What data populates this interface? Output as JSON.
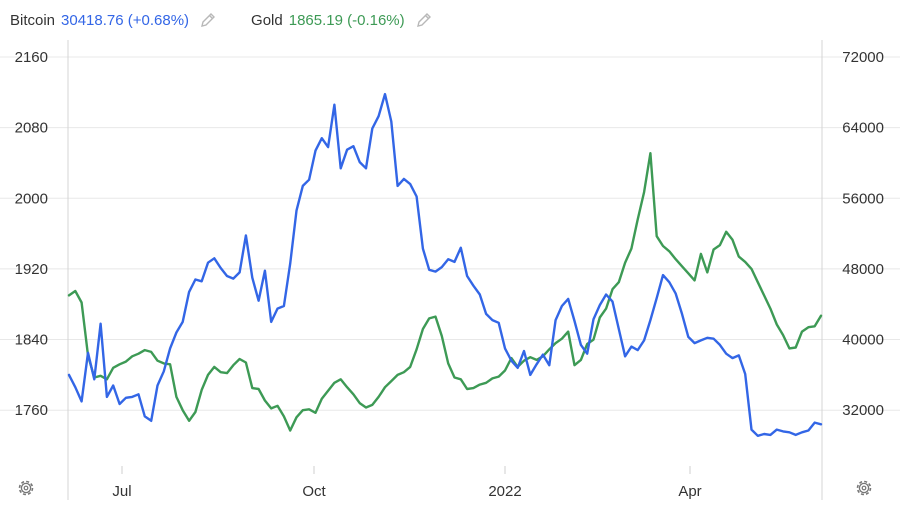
{
  "legend": {
    "btc_name": "Bitcoin",
    "btc_value": "30418.76 (+0.68%)",
    "gold_name": "Gold",
    "gold_value": "1865.19 (-0.16%)",
    "btc_color": "#3366e6",
    "gold_color": "#3d9a55"
  },
  "icons": {
    "edit": "pencil-icon",
    "settings": "gear-icon"
  },
  "chart_data": {
    "type": "line",
    "grid": "horizontal",
    "x_labels": [
      "Jul",
      "Oct",
      "2022",
      "Apr"
    ],
    "left_axis": {
      "ticks": [
        "2160",
        "2080",
        "2000",
        "1920",
        "1840",
        "1760"
      ],
      "range": [
        1690,
        2160
      ]
    },
    "right_axis": {
      "ticks": [
        "72000",
        "64000",
        "56000",
        "48000",
        "40000",
        "32000"
      ],
      "range": [
        25000,
        72000
      ]
    },
    "series": [
      {
        "name": "Bitcoin",
        "axis": "right",
        "color": "#3366e6",
        "values": [
          36000,
          34600,
          33000,
          38500,
          35500,
          41800,
          33500,
          34800,
          32700,
          33400,
          33500,
          33800,
          31300,
          30800,
          34800,
          36400,
          39000,
          40800,
          42000,
          45400,
          46800,
          46600,
          48700,
          49200,
          48100,
          47200,
          46900,
          47600,
          51800,
          47000,
          44400,
          47800,
          42000,
          43500,
          43800,
          48600,
          54600,
          57400,
          58100,
          61400,
          62800,
          61800,
          66600,
          59400,
          61500,
          61900,
          60100,
          59400,
          63900,
          65300,
          67800,
          64700,
          57400,
          58200,
          57600,
          56200,
          50300,
          47900,
          47700,
          48200,
          49100,
          48800,
          50400,
          47200,
          46100,
          45100,
          42900,
          42200,
          41900,
          39000,
          37600,
          36800,
          38700,
          36000,
          37200,
          38300,
          37100,
          42200,
          43800,
          44600,
          42100,
          39400,
          38400,
          42300,
          43900,
          45100,
          44300,
          41200,
          38100,
          39200,
          38800,
          39900,
          42200,
          44700,
          47300,
          46500,
          45200,
          42900,
          40300,
          39600,
          39900,
          40200,
          40100,
          39400,
          38400,
          37900,
          38200,
          36100,
          29800,
          29100,
          29300,
          29200,
          29800,
          29600,
          29500,
          29200,
          29500,
          29700,
          30600,
          30400
        ]
      },
      {
        "name": "Gold",
        "axis": "left",
        "color": "#3d9a55",
        "values": [
          1890,
          1895,
          1882,
          1822,
          1797,
          1799,
          1795,
          1808,
          1812,
          1815,
          1821,
          1824,
          1828,
          1826,
          1816,
          1813,
          1812,
          1775,
          1760,
          1748,
          1758,
          1783,
          1800,
          1809,
          1803,
          1802,
          1811,
          1818,
          1814,
          1785,
          1784,
          1771,
          1762,
          1765,
          1753,
          1737,
          1752,
          1760,
          1761,
          1757,
          1773,
          1782,
          1791,
          1795,
          1786,
          1778,
          1768,
          1763,
          1766,
          1775,
          1786,
          1793,
          1800,
          1803,
          1809,
          1829,
          1852,
          1864,
          1866,
          1844,
          1813,
          1797,
          1795,
          1784,
          1785,
          1789,
          1791,
          1796,
          1798,
          1805,
          1819,
          1809,
          1816,
          1820,
          1817,
          1821,
          1829,
          1836,
          1841,
          1849,
          1811,
          1817,
          1835,
          1840,
          1865,
          1875,
          1897,
          1905,
          1927,
          1943,
          1976,
          2007,
          2051,
          1957,
          1946,
          1940,
          1931,
          1923,
          1915,
          1907,
          1937,
          1916,
          1942,
          1947,
          1962,
          1953,
          1934,
          1928,
          1920,
          1905,
          1890,
          1875,
          1857,
          1845,
          1830,
          1831,
          1849,
          1854,
          1855,
          1867
        ]
      }
    ]
  }
}
